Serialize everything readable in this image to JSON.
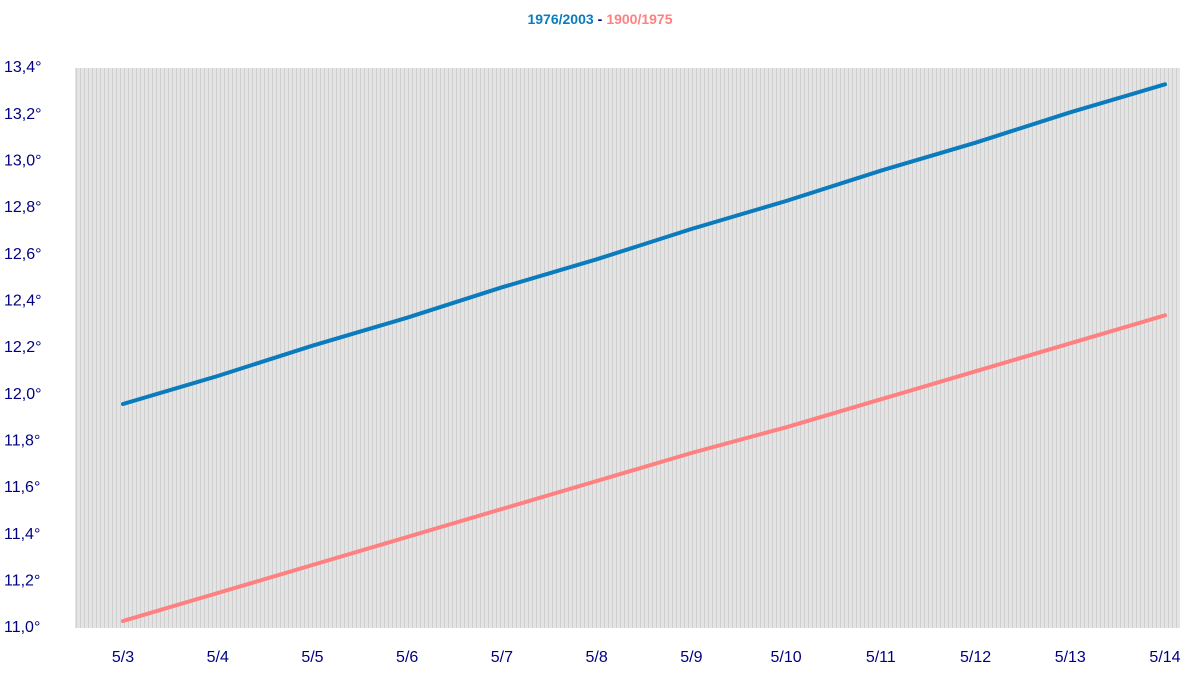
{
  "chart_data": {
    "type": "line",
    "title_separator": "-",
    "categories": [
      "5/3",
      "5/4",
      "5/5",
      "5/6",
      "5/7",
      "5/8",
      "5/9",
      "5/10",
      "5/11",
      "5/12",
      "5/13",
      "5/14"
    ],
    "series": [
      {
        "name": "1976/2003",
        "color": "#0a7bbd",
        "values": [
          11.96,
          12.08,
          12.21,
          12.33,
          12.46,
          12.58,
          12.71,
          12.83,
          12.96,
          13.08,
          13.21,
          13.33
        ]
      },
      {
        "name": "1900/1975",
        "color": "#ff8080",
        "values": [
          11.03,
          11.15,
          11.27,
          11.39,
          11.51,
          11.63,
          11.75,
          11.86,
          11.98,
          12.1,
          12.22,
          12.34
        ]
      }
    ],
    "ylim": [
      11.0,
      13.4
    ],
    "yticks": [
      {
        "value": 11.0,
        "label": "11,0°"
      },
      {
        "value": 11.2,
        "label": "11,2°"
      },
      {
        "value": 11.4,
        "label": "11,4°"
      },
      {
        "value": 11.6,
        "label": "11,6°"
      },
      {
        "value": 11.8,
        "label": "11,8°"
      },
      {
        "value": 12.0,
        "label": "12,0°"
      },
      {
        "value": 12.2,
        "label": "12,2°"
      },
      {
        "value": 12.4,
        "label": "12,4°"
      },
      {
        "value": 12.6,
        "label": "12,6°"
      },
      {
        "value": 12.8,
        "label": "12,8°"
      },
      {
        "value": 13.0,
        "label": "13,0°"
      },
      {
        "value": 13.2,
        "label": "13,2°"
      },
      {
        "value": 13.4,
        "label": "13,4°"
      }
    ]
  }
}
